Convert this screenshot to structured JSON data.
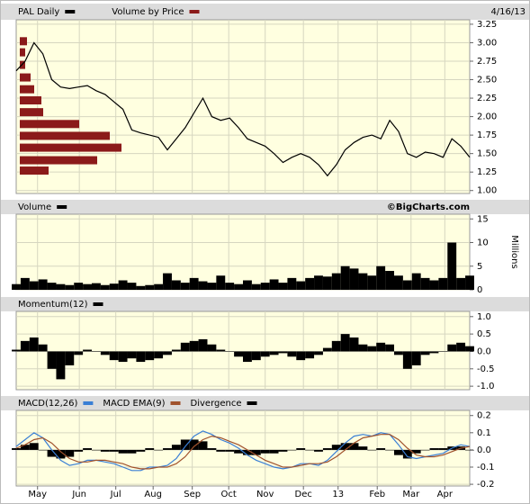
{
  "chart_data": [
    {
      "type": "line",
      "date_label": "4/16/13",
      "series": [
        {
          "name": "PAL Daily",
          "color": "#000000",
          "values": [
            2.62,
            2.75,
            3.0,
            2.85,
            2.5,
            2.4,
            2.38,
            2.4,
            2.42,
            2.35,
            2.3,
            2.2,
            2.1,
            1.82,
            1.78,
            1.75,
            1.72,
            1.55,
            1.7,
            1.85,
            2.05,
            2.25,
            2.0,
            1.95,
            1.98,
            1.85,
            1.7,
            1.65,
            1.6,
            1.5,
            1.38,
            1.45,
            1.5,
            1.45,
            1.35,
            1.2,
            1.35,
            1.55,
            1.65,
            1.72,
            1.75,
            1.7,
            1.95,
            1.8,
            1.5,
            1.45,
            1.52,
            1.5,
            1.45,
            1.7,
            1.6,
            1.45
          ]
        }
      ],
      "volume_by_price": {
        "name": "Volume by Price",
        "color": "#8b1a1a",
        "price_levels": [
          3.02,
          2.87,
          2.7,
          2.53,
          2.37,
          2.22,
          2.06,
          1.9,
          1.74,
          1.58,
          1.41,
          1.27
        ],
        "values": [
          8,
          6,
          6,
          12,
          16,
          24,
          26,
          66,
          100,
          113,
          86,
          32
        ]
      },
      "ylim": [
        0.96,
        3.31
      ],
      "yticks": [
        3.25,
        {
          "value": 3,
          "label": "3.00"
        },
        2.75,
        {
          "value": 2.5,
          "label": "2.50"
        },
        2.25,
        {
          "value": 2,
          "label": "2.00"
        },
        1.75,
        {
          "value": 1.5,
          "label": "1.50"
        },
        1.25,
        {
          "value": 1,
          "label": "1.00"
        }
      ]
    },
    {
      "type": "bar",
      "annotation": "©BigCharts.com",
      "y_label": "Millions",
      "series": [
        {
          "name": "Volume",
          "color": "#000000",
          "values": [
            1.2,
            2.5,
            1.8,
            2.2,
            1.5,
            1.2,
            1.0,
            1.5,
            1.2,
            1.4,
            1.0,
            1.3,
            2.0,
            1.5,
            0.8,
            1.0,
            1.2,
            3.5,
            2.0,
            1.5,
            2.5,
            1.8,
            1.5,
            3.0,
            1.5,
            1.2,
            2.0,
            1.2,
            1.5,
            2.2,
            1.5,
            2.5,
            1.8,
            2.5,
            3.0,
            2.8,
            3.5,
            5.0,
            4.5,
            3.5,
            3.0,
            5.0,
            4.0,
            3.0,
            2.0,
            3.5,
            2.5,
            2.0,
            2.5,
            10.0,
            2.5,
            3.0
          ]
        }
      ],
      "ylim": [
        0,
        16
      ],
      "yticks": [
        15,
        10,
        5,
        0
      ]
    },
    {
      "type": "bar",
      "series": [
        {
          "name": "Momentum(12)",
          "color": "#000000",
          "values": [
            0.05,
            0.3,
            0.4,
            0.2,
            -0.5,
            -0.8,
            -0.4,
            -0.1,
            0.05,
            0,
            -0.1,
            -0.25,
            -0.3,
            -0.2,
            -0.3,
            -0.25,
            -0.2,
            -0.1,
            0.05,
            0.25,
            0.3,
            0.35,
            0.2,
            0.05,
            0,
            -0.15,
            -0.3,
            -0.25,
            -0.15,
            -0.1,
            -0.05,
            -0.15,
            -0.25,
            -0.2,
            -0.1,
            0.1,
            0.3,
            0.5,
            0.4,
            0.2,
            0.15,
            0.25,
            0.2,
            -0.1,
            -0.5,
            -0.4,
            -0.1,
            -0.05,
            0,
            0.2,
            0.25,
            0.15
          ]
        }
      ],
      "ylim": [
        -1.1,
        1.15
      ],
      "yticks": [
        {
          "value": 1,
          "label": "1.0"
        },
        0.5,
        {
          "value": 0,
          "label": "0.0"
        },
        -0.5,
        {
          "value": -1,
          "label": "-1.0"
        }
      ]
    },
    {
      "type": "line",
      "series": [
        {
          "name": "MACD(12,26)",
          "color": "#3a7fd5",
          "values": [
            0.02,
            0.06,
            0.1,
            0.07,
            0.0,
            -0.06,
            -0.09,
            -0.08,
            -0.06,
            -0.06,
            -0.07,
            -0.08,
            -0.1,
            -0.12,
            -0.12,
            -0.1,
            -0.1,
            -0.09,
            -0.05,
            0.02,
            0.08,
            0.11,
            0.09,
            0.06,
            0.04,
            0.01,
            -0.03,
            -0.06,
            -0.08,
            -0.1,
            -0.11,
            -0.1,
            -0.08,
            -0.08,
            -0.09,
            -0.06,
            -0.01,
            0.04,
            0.08,
            0.09,
            0.08,
            0.1,
            0.09,
            0.03,
            -0.04,
            -0.05,
            -0.04,
            -0.03,
            -0.02,
            0.01,
            0.03,
            0.02
          ]
        },
        {
          "name": "MACD EMA(9)",
          "color": "#a0522d",
          "values": [
            0.01,
            0.03,
            0.06,
            0.07,
            0.04,
            -0.01,
            -0.05,
            -0.07,
            -0.07,
            -0.06,
            -0.06,
            -0.07,
            -0.08,
            -0.1,
            -0.11,
            -0.11,
            -0.1,
            -0.1,
            -0.08,
            -0.04,
            0.02,
            0.06,
            0.08,
            0.07,
            0.05,
            0.03,
            0.0,
            -0.03,
            -0.06,
            -0.08,
            -0.1,
            -0.1,
            -0.09,
            -0.08,
            -0.08,
            -0.07,
            -0.04,
            0.0,
            0.04,
            0.07,
            0.08,
            0.09,
            0.09,
            0.06,
            0.01,
            -0.03,
            -0.04,
            -0.04,
            -0.03,
            -0.01,
            0.01,
            0.02
          ]
        },
        {
          "name": "Divergence",
          "color": "#000000",
          "type": "bar",
          "values": [
            0.01,
            0.03,
            0.04,
            0,
            -0.04,
            -0.05,
            -0.04,
            -0.01,
            0.01,
            0,
            -0.01,
            -0.01,
            -0.02,
            -0.02,
            -0.01,
            0.01,
            0,
            0.01,
            0.03,
            0.06,
            0.06,
            0.05,
            0.01,
            -0.01,
            -0.01,
            -0.02,
            -0.03,
            -0.03,
            -0.02,
            -0.02,
            -0.01,
            0,
            0.01,
            0,
            -0.01,
            0.01,
            0.03,
            0.04,
            0.04,
            0.02,
            0,
            0.01,
            0,
            -0.03,
            -0.05,
            -0.02,
            0,
            0.01,
            0.01,
            0.02,
            0.02,
            0
          ]
        }
      ],
      "ylim": [
        -0.21,
        0.23
      ],
      "yticks": [
        0.2,
        0.1,
        {
          "value": 0,
          "label": "0.0"
        },
        -0.1,
        -0.2
      ],
      "xlim": [
        0,
        51
      ],
      "xticks": [
        {
          "value": 2.4,
          "label": "May"
        },
        {
          "value": 7.1,
          "label": "Jun"
        },
        {
          "value": 11.2,
          "label": "Jul"
        },
        {
          "value": 15.4,
          "label": "Aug"
        },
        {
          "value": 19.8,
          "label": "Sep"
        },
        {
          "value": 23.9,
          "label": "Oct"
        },
        {
          "value": 28,
          "label": "Nov"
        },
        {
          "value": 32.3,
          "label": "Dec"
        },
        {
          "value": 36.2,
          "label": "13"
        },
        {
          "value": 40.6,
          "label": "Feb"
        },
        {
          "value": 44.4,
          "label": "Mar"
        },
        {
          "value": 48.2,
          "label": "Apr"
        }
      ]
    }
  ]
}
